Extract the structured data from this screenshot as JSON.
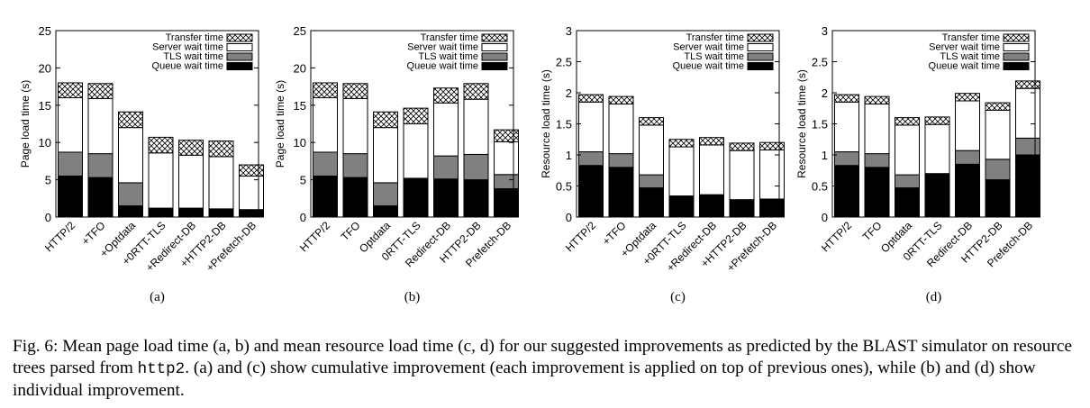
{
  "legend_labels": [
    "Transfer time",
    "Server wait time",
    "TLS wait time",
    "Queue wait time"
  ],
  "caption": {
    "prefix": "Fig. 6:",
    "part1": "Mean page load time (a, b) and mean resource load time (c, d) for our suggested improvements as predicted by the BLAST simulator on resource trees parsed from",
    "code": "http2",
    "part2": ". (a) and (c) show cumulative improvement (each improvement is applied on top of previous ones), while (b) and (d) show individual improvement."
  },
  "colors": {
    "queue": "#000000",
    "tls": "#808080",
    "server": "#ffffff",
    "transfer": "crosshatch"
  },
  "chart_data": [
    {
      "type": "bar",
      "stacked": true,
      "panel_label": "(a)",
      "ylabel": "Page load time (s)",
      "ylim": [
        0,
        25
      ],
      "yticks": [
        0,
        5,
        10,
        15,
        20,
        25
      ],
      "legend_position": "top-right",
      "categories": [
        "HTTP/2",
        "+TFO",
        "+Optdata",
        "+0RTT-TLS",
        "+Redirect-DB",
        "+HTTP2-DB",
        "+Prefetch-DB"
      ],
      "series": [
        {
          "name": "Queue wait time",
          "values": [
            5.5,
            5.3,
            1.5,
            1.2,
            1.2,
            1.1,
            1.0
          ]
        },
        {
          "name": "TLS wait time",
          "values": [
            3.2,
            3.2,
            3.1,
            0,
            0,
            0,
            0
          ]
        },
        {
          "name": "Server wait time",
          "values": [
            7.3,
            7.4,
            7.4,
            7.4,
            7.1,
            7.0,
            4.5
          ]
        },
        {
          "name": "Transfer time",
          "values": [
            2.0,
            2.0,
            2.1,
            2.1,
            2.0,
            2.1,
            1.5
          ]
        }
      ]
    },
    {
      "type": "bar",
      "stacked": true,
      "panel_label": "(b)",
      "ylabel": "Page load time (s)",
      "ylim": [
        0,
        25
      ],
      "yticks": [
        0,
        5,
        10,
        15,
        20,
        25
      ],
      "legend_position": "top-right",
      "categories": [
        "HTTP/2",
        "TFO",
        "Optdata",
        "0RTT-TLS",
        "Redirect-DB",
        "HTTP2-DB",
        "Prefetch-DB"
      ],
      "series": [
        {
          "name": "Queue wait time",
          "values": [
            5.5,
            5.3,
            1.5,
            5.2,
            5.1,
            5.0,
            3.8
          ]
        },
        {
          "name": "TLS wait time",
          "values": [
            3.2,
            3.2,
            3.1,
            0,
            3.1,
            3.4,
            1.9
          ]
        },
        {
          "name": "Server wait time",
          "values": [
            7.3,
            7.4,
            7.4,
            7.3,
            7.1,
            7.4,
            4.4
          ]
        },
        {
          "name": "Transfer time",
          "values": [
            2.0,
            2.0,
            2.1,
            2.1,
            2.0,
            2.1,
            1.6
          ]
        }
      ]
    },
    {
      "type": "bar",
      "stacked": true,
      "panel_label": "(c)",
      "ylabel": "Resource load time (s)",
      "ylim": [
        0,
        3
      ],
      "yticks": [
        0,
        0.5,
        1,
        1.5,
        2,
        2.5,
        3
      ],
      "legend_position": "top-right",
      "categories": [
        "HTTP/2",
        "+TFO",
        "+Optdata",
        "+0RTT-TLS",
        "+Redirect-DB",
        "+HTTP2-DB",
        "+Prefetch-DB"
      ],
      "series": [
        {
          "name": "Queue wait time",
          "values": [
            0.83,
            0.8,
            0.47,
            0.34,
            0.36,
            0.28,
            0.29
          ]
        },
        {
          "name": "TLS wait time",
          "values": [
            0.22,
            0.22,
            0.21,
            0,
            0,
            0,
            0
          ]
        },
        {
          "name": "Server wait time",
          "values": [
            0.8,
            0.8,
            0.8,
            0.79,
            0.8,
            0.79,
            0.79
          ]
        },
        {
          "name": "Transfer time",
          "values": [
            0.12,
            0.12,
            0.12,
            0.12,
            0.12,
            0.12,
            0.12
          ]
        }
      ]
    },
    {
      "type": "bar",
      "stacked": true,
      "panel_label": "(d)",
      "ylabel": "Resource load time (s)",
      "ylim": [
        0,
        3
      ],
      "yticks": [
        0,
        0.5,
        1,
        1.5,
        2,
        2.5,
        3
      ],
      "legend_position": "top-right",
      "categories": [
        "HTTP/2",
        "TFO",
        "Optdata",
        "0RTT-TLS",
        "Redirect-DB",
        "HTTP2-DB",
        "Prefetch-DB"
      ],
      "series": [
        {
          "name": "Queue wait time",
          "values": [
            0.83,
            0.8,
            0.47,
            0.7,
            0.85,
            0.6,
            1.0
          ]
        },
        {
          "name": "TLS wait time",
          "values": [
            0.22,
            0.22,
            0.21,
            0,
            0.22,
            0.33,
            0.27
          ]
        },
        {
          "name": "Server wait time",
          "values": [
            0.8,
            0.8,
            0.8,
            0.79,
            0.8,
            0.79,
            0.8
          ]
        },
        {
          "name": "Transfer time",
          "values": [
            0.12,
            0.12,
            0.12,
            0.12,
            0.12,
            0.12,
            0.12
          ]
        }
      ]
    }
  ]
}
